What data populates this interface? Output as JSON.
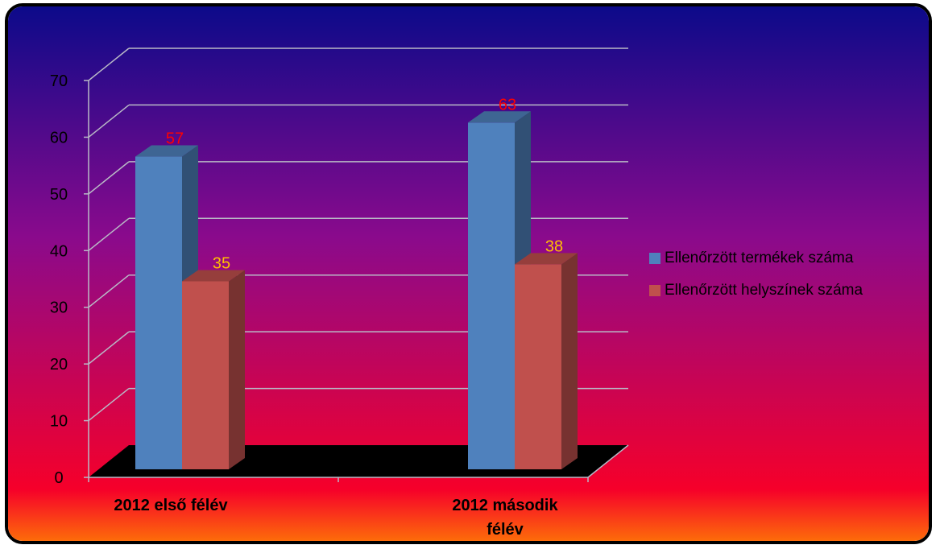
{
  "colors": {
    "gradient_top": "#0c0a8a",
    "gradient_mid": "#8a0a8c",
    "gradient_low": "#f6002a",
    "gradient_bottom": "#ff8a00",
    "grid": "#b9b9c6",
    "floor": "#000000"
  },
  "chart_data": {
    "type": "bar",
    "title": "",
    "xlabel": "",
    "ylabel": "",
    "ylim": [
      0,
      70
    ],
    "yticks": [
      "0",
      "10",
      "20",
      "30",
      "40",
      "50",
      "60",
      "70"
    ],
    "grid": true,
    "legend_position": "right",
    "categories": [
      "2012 első félév",
      "2012 második félév"
    ],
    "series": [
      {
        "name": "Ellenőrzött termékek száma",
        "values": [
          57,
          63
        ],
        "color": "#4f81bd",
        "label_color": "#ff0000"
      },
      {
        "name": "Ellenőrzött helyszínek száma",
        "values": [
          35,
          38
        ],
        "color": "#c0504d",
        "label_color": "#ffc000"
      }
    ]
  }
}
